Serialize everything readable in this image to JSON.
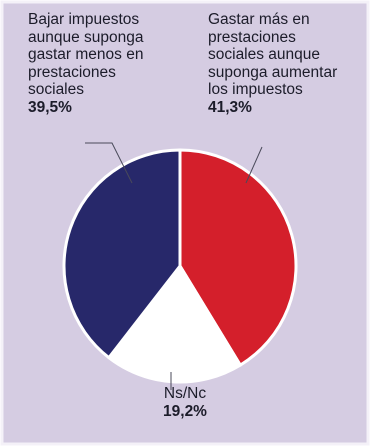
{
  "colors": {
    "background": "#d5cce2",
    "border": "#f4f1f8",
    "slice_border": "#ffffff",
    "leader": "#4a4a5a"
  },
  "chart_data": {
    "type": "pie",
    "title": "",
    "slices": [
      {
        "key": "raise",
        "label": "Gastar más en prestaciones sociales aunque suponga aumentar los impuestos",
        "lines": [
          "Gastar más en",
          "prestaciones",
          "sociales aunque",
          "suponga aumentar",
          "los impuestos"
        ],
        "value": 41.3,
        "value_label": "41,3%",
        "color": "#d41f2b"
      },
      {
        "key": "nsnc",
        "label": "Ns/Nc",
        "lines": [
          "Ns/Nc"
        ],
        "value": 19.2,
        "value_label": "19,2%",
        "color": "#ffffff"
      },
      {
        "key": "lower",
        "label": "Bajar impuestos aunque suponga gastar menos en prestaciones sociales",
        "lines": [
          "Bajar impuestos",
          "aunque suponga",
          "gastar menos en",
          "prestaciones",
          "sociales"
        ],
        "value": 39.5,
        "value_label": "39,5%",
        "color": "#27286a"
      }
    ]
  }
}
